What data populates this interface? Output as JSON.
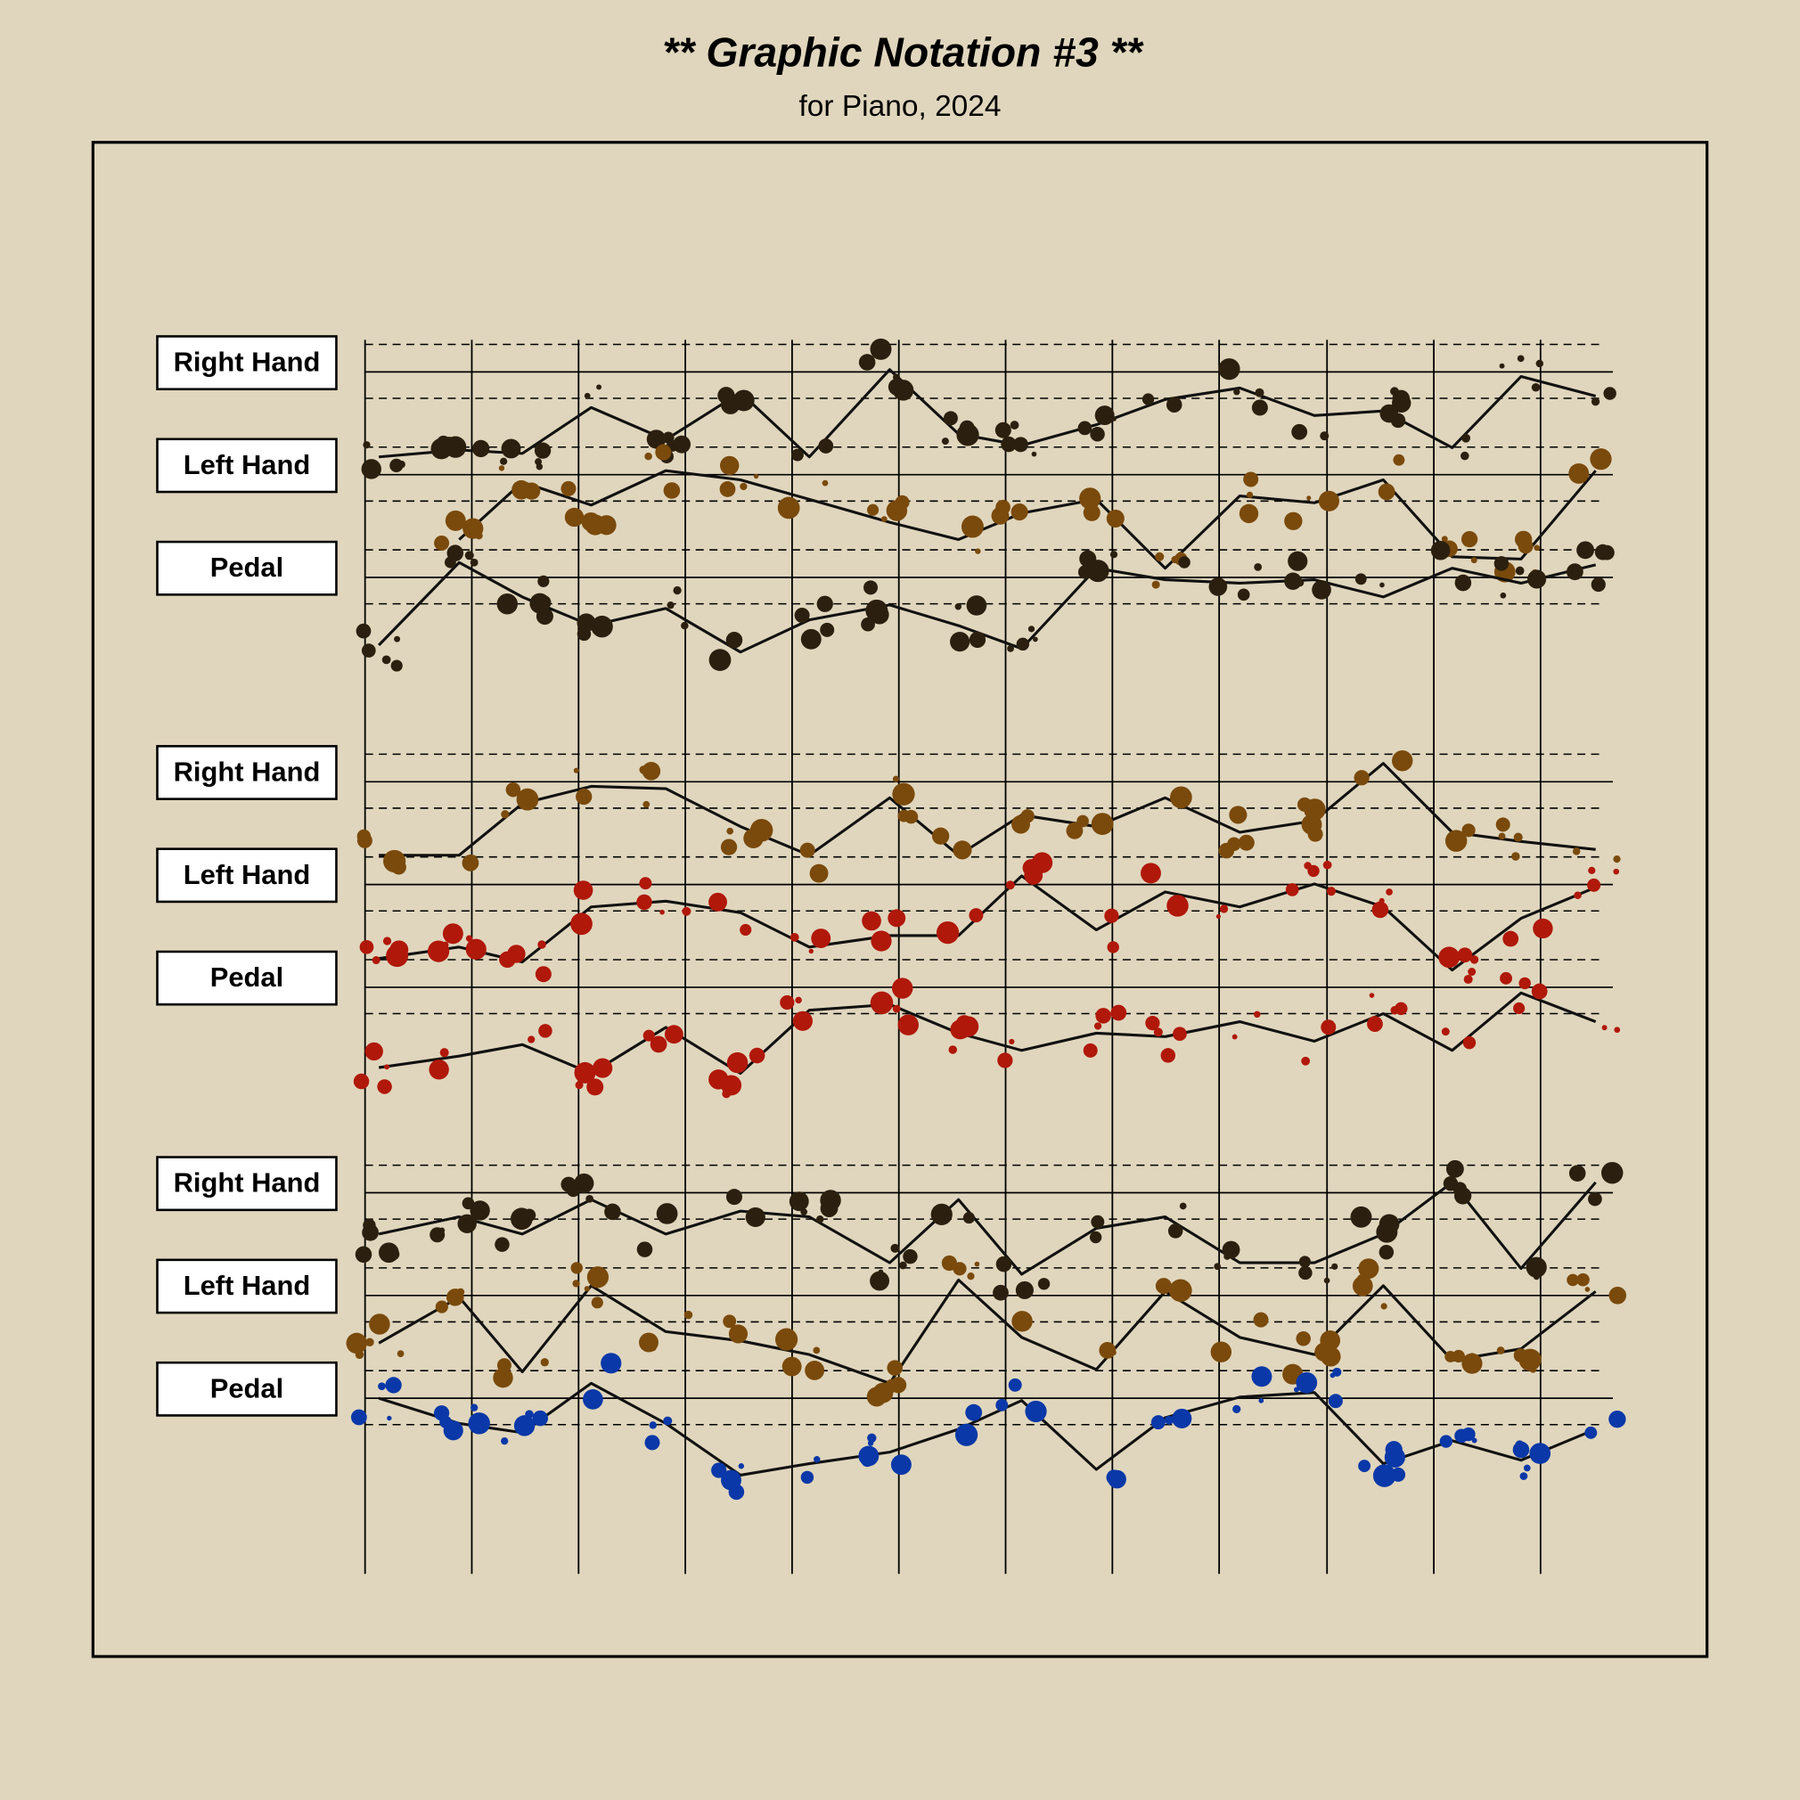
{
  "header": {
    "title": "** Graphic Notation #3 **",
    "subtitle": "for Piano, 2024"
  },
  "systems": [
    {
      "staves": [
        {
          "label": "Right Hand"
        },
        {
          "label": "Left Hand"
        },
        {
          "label": "Pedal"
        }
      ]
    },
    {
      "staves": [
        {
          "label": "Right Hand"
        },
        {
          "label": "Left Hand"
        },
        {
          "label": "Pedal"
        }
      ]
    },
    {
      "staves": [
        {
          "label": "Right Hand"
        },
        {
          "label": "Left Hand"
        },
        {
          "label": "Pedal"
        }
      ]
    }
  ]
}
